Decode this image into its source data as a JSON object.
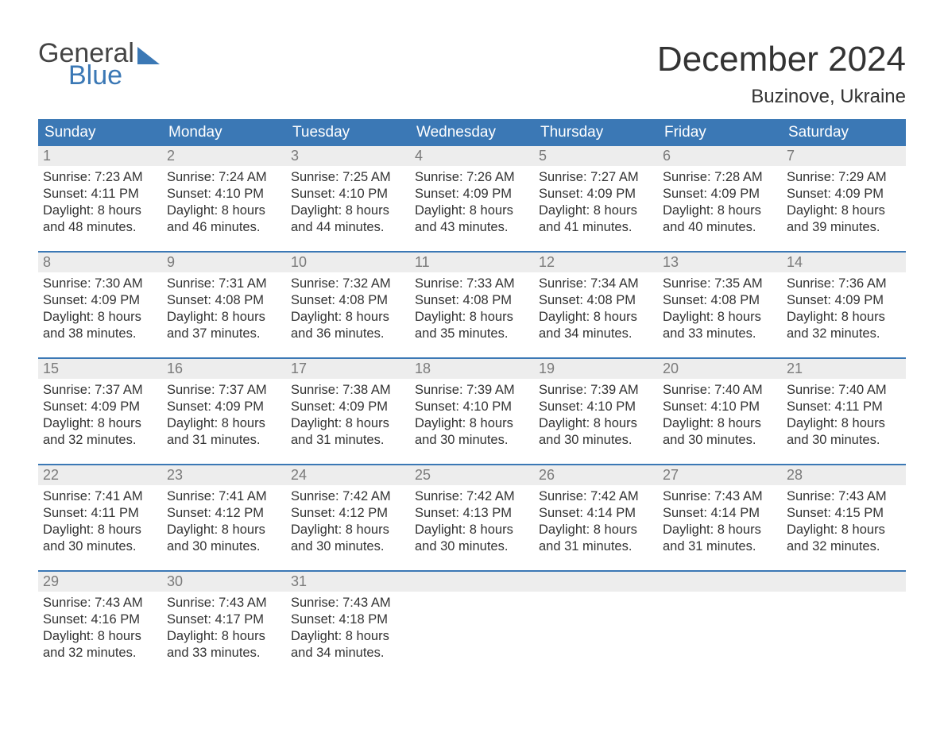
{
  "brand": {
    "word1": "General",
    "word2": "Blue"
  },
  "title": "December 2024",
  "location": "Buzinove, Ukraine",
  "colors": {
    "accent": "#3b78b5",
    "header_text": "#ffffff",
    "daynum_bg": "#ededed",
    "daynum_color": "#7a7a7a",
    "body_text": "#333333",
    "background": "#ffffff"
  },
  "typography": {
    "title_size_pt": 33,
    "location_size_pt": 18,
    "header_size_pt": 14,
    "cell_size_pt": 12,
    "font_family": "Arial"
  },
  "layout": {
    "columns": 7,
    "rows": 5,
    "first_day_column": 0
  },
  "weekdays": [
    "Sunday",
    "Monday",
    "Tuesday",
    "Wednesday",
    "Thursday",
    "Friday",
    "Saturday"
  ],
  "days": [
    {
      "n": 1,
      "sunrise": "7:23 AM",
      "sunset": "4:11 PM",
      "dl": "8 hours and 48 minutes."
    },
    {
      "n": 2,
      "sunrise": "7:24 AM",
      "sunset": "4:10 PM",
      "dl": "8 hours and 46 minutes."
    },
    {
      "n": 3,
      "sunrise": "7:25 AM",
      "sunset": "4:10 PM",
      "dl": "8 hours and 44 minutes."
    },
    {
      "n": 4,
      "sunrise": "7:26 AM",
      "sunset": "4:09 PM",
      "dl": "8 hours and 43 minutes."
    },
    {
      "n": 5,
      "sunrise": "7:27 AM",
      "sunset": "4:09 PM",
      "dl": "8 hours and 41 minutes."
    },
    {
      "n": 6,
      "sunrise": "7:28 AM",
      "sunset": "4:09 PM",
      "dl": "8 hours and 40 minutes."
    },
    {
      "n": 7,
      "sunrise": "7:29 AM",
      "sunset": "4:09 PM",
      "dl": "8 hours and 39 minutes."
    },
    {
      "n": 8,
      "sunrise": "7:30 AM",
      "sunset": "4:09 PM",
      "dl": "8 hours and 38 minutes."
    },
    {
      "n": 9,
      "sunrise": "7:31 AM",
      "sunset": "4:08 PM",
      "dl": "8 hours and 37 minutes."
    },
    {
      "n": 10,
      "sunrise": "7:32 AM",
      "sunset": "4:08 PM",
      "dl": "8 hours and 36 minutes."
    },
    {
      "n": 11,
      "sunrise": "7:33 AM",
      "sunset": "4:08 PM",
      "dl": "8 hours and 35 minutes."
    },
    {
      "n": 12,
      "sunrise": "7:34 AM",
      "sunset": "4:08 PM",
      "dl": "8 hours and 34 minutes."
    },
    {
      "n": 13,
      "sunrise": "7:35 AM",
      "sunset": "4:08 PM",
      "dl": "8 hours and 33 minutes."
    },
    {
      "n": 14,
      "sunrise": "7:36 AM",
      "sunset": "4:09 PM",
      "dl": "8 hours and 32 minutes."
    },
    {
      "n": 15,
      "sunrise": "7:37 AM",
      "sunset": "4:09 PM",
      "dl": "8 hours and 32 minutes."
    },
    {
      "n": 16,
      "sunrise": "7:37 AM",
      "sunset": "4:09 PM",
      "dl": "8 hours and 31 minutes."
    },
    {
      "n": 17,
      "sunrise": "7:38 AM",
      "sunset": "4:09 PM",
      "dl": "8 hours and 31 minutes."
    },
    {
      "n": 18,
      "sunrise": "7:39 AM",
      "sunset": "4:10 PM",
      "dl": "8 hours and 30 minutes."
    },
    {
      "n": 19,
      "sunrise": "7:39 AM",
      "sunset": "4:10 PM",
      "dl": "8 hours and 30 minutes."
    },
    {
      "n": 20,
      "sunrise": "7:40 AM",
      "sunset": "4:10 PM",
      "dl": "8 hours and 30 minutes."
    },
    {
      "n": 21,
      "sunrise": "7:40 AM",
      "sunset": "4:11 PM",
      "dl": "8 hours and 30 minutes."
    },
    {
      "n": 22,
      "sunrise": "7:41 AM",
      "sunset": "4:11 PM",
      "dl": "8 hours and 30 minutes."
    },
    {
      "n": 23,
      "sunrise": "7:41 AM",
      "sunset": "4:12 PM",
      "dl": "8 hours and 30 minutes."
    },
    {
      "n": 24,
      "sunrise": "7:42 AM",
      "sunset": "4:12 PM",
      "dl": "8 hours and 30 minutes."
    },
    {
      "n": 25,
      "sunrise": "7:42 AM",
      "sunset": "4:13 PM",
      "dl": "8 hours and 30 minutes."
    },
    {
      "n": 26,
      "sunrise": "7:42 AM",
      "sunset": "4:14 PM",
      "dl": "8 hours and 31 minutes."
    },
    {
      "n": 27,
      "sunrise": "7:43 AM",
      "sunset": "4:14 PM",
      "dl": "8 hours and 31 minutes."
    },
    {
      "n": 28,
      "sunrise": "7:43 AM",
      "sunset": "4:15 PM",
      "dl": "8 hours and 32 minutes."
    },
    {
      "n": 29,
      "sunrise": "7:43 AM",
      "sunset": "4:16 PM",
      "dl": "8 hours and 32 minutes."
    },
    {
      "n": 30,
      "sunrise": "7:43 AM",
      "sunset": "4:17 PM",
      "dl": "8 hours and 33 minutes."
    },
    {
      "n": 31,
      "sunrise": "7:43 AM",
      "sunset": "4:18 PM",
      "dl": "8 hours and 34 minutes."
    }
  ],
  "labels": {
    "sunrise": "Sunrise:",
    "sunset": "Sunset:",
    "daylight": "Daylight:"
  }
}
